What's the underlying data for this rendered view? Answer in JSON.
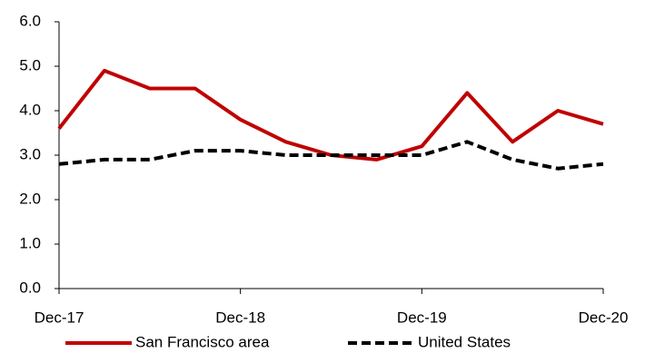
{
  "chart_data": {
    "type": "line",
    "categories": [
      "Dec-17",
      null,
      null,
      null,
      "Dec-18",
      null,
      null,
      null,
      "Dec-19",
      null,
      null,
      null,
      "Dec-20"
    ],
    "series": [
      {
        "name": "San Francisco area",
        "color": "#c00000",
        "dash": "solid",
        "values": [
          3.6,
          4.9,
          4.5,
          4.5,
          3.8,
          3.3,
          3.0,
          2.9,
          3.2,
          4.4,
          3.3,
          4.0,
          3.7
        ]
      },
      {
        "name": "United States",
        "color": "#000000",
        "dash": "dashed",
        "values": [
          2.8,
          2.9,
          2.9,
          3.1,
          3.1,
          3.0,
          3.0,
          3.0,
          3.0,
          3.3,
          2.9,
          2.7,
          2.8
        ]
      }
    ],
    "ylim": [
      0,
      6
    ],
    "yticks": [
      {
        "value": 0,
        "label": "0.0"
      },
      {
        "value": 1,
        "label": "1.0"
      },
      {
        "value": 2,
        "label": "2.0"
      },
      {
        "value": 3,
        "label": "3.0"
      },
      {
        "value": 4,
        "label": "4.0"
      },
      {
        "value": 5,
        "label": "5.0"
      },
      {
        "value": 6,
        "label": "6.0"
      }
    ],
    "grid": false,
    "legend": "bottom"
  }
}
